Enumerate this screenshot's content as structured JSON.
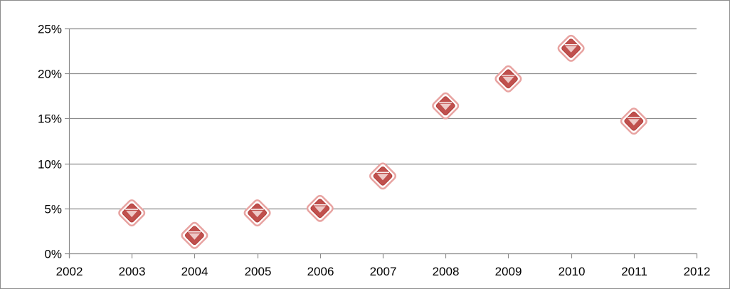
{
  "chart_data": {
    "type": "scatter",
    "title": "",
    "xlabel": "",
    "ylabel": "",
    "x": [
      2003,
      2004,
      2005,
      2006,
      2007,
      2008,
      2009,
      2010,
      2011
    ],
    "y": [
      0.045,
      0.02,
      0.045,
      0.05,
      0.086,
      0.164,
      0.194,
      0.228,
      0.147
    ],
    "xlim": [
      2002,
      2012
    ],
    "ylim": [
      0,
      0.25
    ],
    "x_ticks": [
      "2002",
      "2003",
      "2004",
      "2005",
      "2006",
      "2007",
      "2008",
      "2009",
      "2010",
      "2011",
      "2012"
    ],
    "y_ticks": [
      "0%",
      "5%",
      "10%",
      "15%",
      "20%",
      "25%"
    ],
    "grid": "horizontal",
    "legend": "none",
    "marker": "diamond",
    "colors": {
      "marker_fill": "#c0504d",
      "marker_stroke": "#e8a3a1",
      "marker_highlight": "#f3d6d5",
      "gridline": "#8c8c8c",
      "axis": "#8c8c8c"
    }
  }
}
